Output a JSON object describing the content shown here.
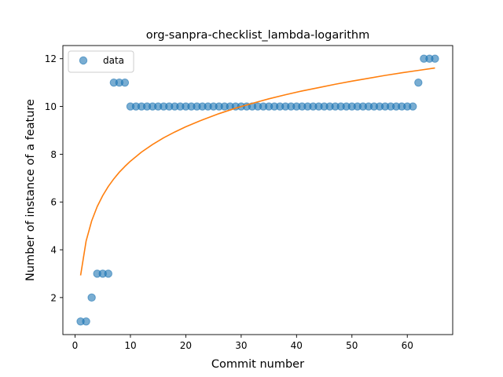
{
  "chart_data": {
    "type": "scatter",
    "title": "org-sanpra-checklist_lambda-logarithm",
    "xlabel": "Commit number",
    "ylabel": "Number of instance of a feature",
    "xlim": [
      -2.2,
      68.2
    ],
    "ylim": [
      0.45,
      12.55
    ],
    "xticks": [
      0,
      10,
      20,
      30,
      40,
      50,
      60
    ],
    "yticks": [
      2,
      4,
      6,
      8,
      10,
      12
    ],
    "legend": {
      "placement": "upper-left",
      "entries": [
        "data"
      ]
    },
    "grid": false,
    "series": [
      {
        "name": "data",
        "kind": "scatter",
        "color": "#1f77b4",
        "x": [
          1,
          2,
          3,
          4,
          5,
          6,
          7,
          8,
          9,
          10,
          11,
          12,
          13,
          14,
          15,
          16,
          17,
          18,
          19,
          20,
          21,
          22,
          23,
          24,
          25,
          26,
          27,
          28,
          29,
          30,
          31,
          32,
          33,
          34,
          35,
          36,
          37,
          38,
          39,
          40,
          41,
          42,
          43,
          44,
          45,
          46,
          47,
          48,
          49,
          50,
          51,
          52,
          53,
          54,
          55,
          56,
          57,
          58,
          59,
          60,
          61,
          62,
          63,
          64,
          65
        ],
        "y": [
          1,
          1,
          2,
          3,
          3,
          3,
          11,
          11,
          11,
          10,
          10,
          10,
          10,
          10,
          10,
          10,
          10,
          10,
          10,
          10,
          10,
          10,
          10,
          10,
          10,
          10,
          10,
          10,
          10,
          10,
          10,
          10,
          10,
          10,
          10,
          10,
          10,
          10,
          10,
          10,
          10,
          10,
          10,
          10,
          10,
          10,
          10,
          10,
          10,
          10,
          10,
          10,
          10,
          10,
          10,
          10,
          10,
          10,
          10,
          10,
          10,
          11,
          12,
          12,
          12
        ]
      },
      {
        "kind": "line",
        "color": "#ff7f0e",
        "x": [
          1,
          2,
          3,
          4,
          5,
          6,
          7,
          8,
          9,
          10,
          12,
          14,
          16,
          18,
          20,
          23,
          26,
          29,
          32,
          35,
          38,
          41,
          44,
          47,
          50,
          53,
          56,
          59,
          62,
          65
        ],
        "y": [
          2.93,
          4.37,
          5.21,
          5.81,
          6.27,
          6.65,
          6.97,
          7.25,
          7.49,
          7.71,
          8.09,
          8.41,
          8.69,
          8.93,
          9.15,
          9.44,
          9.7,
          9.93,
          10.13,
          10.32,
          10.49,
          10.65,
          10.79,
          10.93,
          11.06,
          11.18,
          11.3,
          11.41,
          11.51,
          11.61
        ]
      }
    ]
  }
}
